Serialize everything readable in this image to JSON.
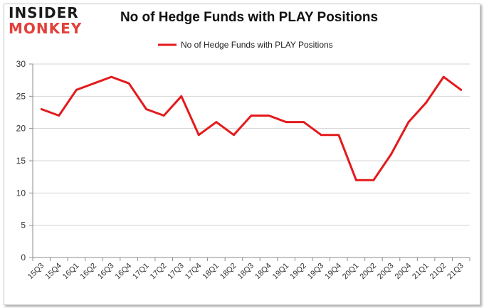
{
  "logo": {
    "line1": "INSIDER",
    "line2": "MONKEY"
  },
  "chart_data": {
    "type": "line",
    "title": "No of Hedge Funds with PLAY Positions",
    "xlabel": "",
    "ylabel": "",
    "categories": [
      "15Q3",
      "15Q4",
      "16Q1",
      "16Q2",
      "16Q3",
      "16Q4",
      "17Q1",
      "17Q2",
      "17Q3",
      "17Q4",
      "18Q1",
      "18Q2",
      "18Q3",
      "18Q4",
      "19Q1",
      "19Q2",
      "19Q3",
      "19Q4",
      "20Q1",
      "20Q2",
      "20Q3",
      "20Q4",
      "21Q1",
      "21Q2",
      "21Q3"
    ],
    "series": [
      {
        "name": "No of Hedge Funds with PLAY Positions",
        "color": "#e31a1c",
        "values": [
          23,
          22,
          26,
          27,
          28,
          27,
          23,
          22,
          25,
          19,
          21,
          19,
          22,
          22,
          21,
          21,
          19,
          19,
          12,
          12,
          16,
          21,
          24,
          28,
          26
        ]
      }
    ],
    "ylim": [
      0,
      30
    ],
    "yticks": [
      0,
      5,
      10,
      15,
      20,
      25,
      30
    ],
    "grid": true,
    "legend": "top-center"
  }
}
